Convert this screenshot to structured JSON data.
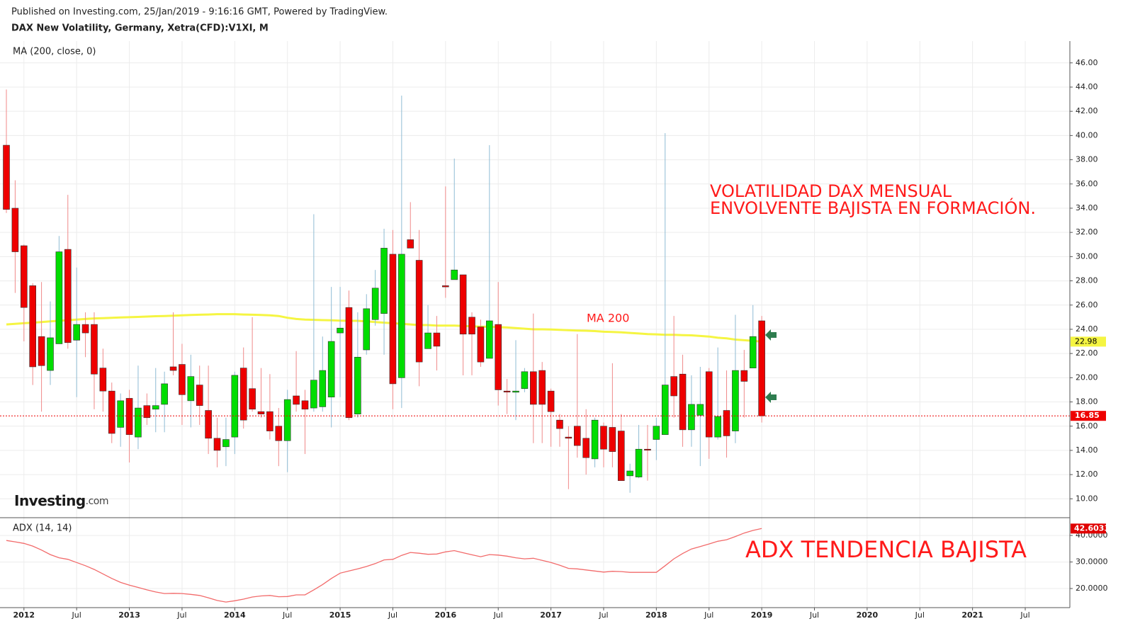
{
  "header": {
    "published": "Published on Investing.com, 25/Jan/2019 - 9:16:16 GMT, Powered by TradingView.",
    "logo": "Investing",
    "logo_suffix": ".com"
  },
  "chart_data": [
    {
      "type": "candlestick",
      "title": "DAX New Volatility, Germany, Xetra(CFD):V1XI, M",
      "indicator_label": "MA (200, close, 0)",
      "annotations": [
        "VOLATILIDAD DAX MENSUAL",
        "ENVOLVENTE BAJISTA EN FORMACIÓN.",
        "MA 200"
      ],
      "up_color": "#00dd00",
      "down_color": "#ee0000",
      "grid": true,
      "x": [
        "2011-11",
        "2011-12",
        "2012-01",
        "2012-02",
        "2012-03",
        "2012-04",
        "2012-05",
        "2012-06",
        "2012-07",
        "2012-08",
        "2012-09",
        "2012-10",
        "2012-11",
        "2012-12",
        "2013-01",
        "2013-02",
        "2013-03",
        "2013-04",
        "2013-05",
        "2013-06",
        "2013-07",
        "2013-08",
        "2013-09",
        "2013-10",
        "2013-11",
        "2013-12",
        "2014-01",
        "2014-02",
        "2014-03",
        "2014-04",
        "2014-05",
        "2014-06",
        "2014-07",
        "2014-08",
        "2014-09",
        "2014-10",
        "2014-11",
        "2014-12",
        "2015-01",
        "2015-02",
        "2015-03",
        "2015-04",
        "2015-05",
        "2015-06",
        "2015-07",
        "2015-08",
        "2015-09",
        "2015-10",
        "2015-11",
        "2015-12",
        "2016-01",
        "2016-02",
        "2016-03",
        "2016-04",
        "2016-05",
        "2016-06",
        "2016-07",
        "2016-08",
        "2016-09",
        "2016-10",
        "2016-11",
        "2016-12",
        "2017-01",
        "2017-02",
        "2017-03",
        "2017-04",
        "2017-05",
        "2017-06",
        "2017-07",
        "2017-08",
        "2017-09",
        "2017-10",
        "2017-11",
        "2017-12",
        "2018-01",
        "2018-02",
        "2018-03",
        "2018-04",
        "2018-05",
        "2018-06",
        "2018-07",
        "2018-08",
        "2018-09",
        "2018-10",
        "2018-11",
        "2018-12",
        "2019-01"
      ],
      "open": [
        39.2,
        34.0,
        30.9,
        27.6,
        23.4,
        20.6,
        22.8,
        30.6,
        23.1,
        24.4,
        24.4,
        20.8,
        18.9,
        15.9,
        18.3,
        15.1,
        17.7,
        17.4,
        17.8,
        20.9,
        21.1,
        18.1,
        19.4,
        17.3,
        15.0,
        14.3,
        15.1,
        20.8,
        19.1,
        17.2,
        17.2,
        16.0,
        14.8,
        18.5,
        18.1,
        17.5,
        17.6,
        18.4,
        23.7,
        25.8,
        17.0,
        22.3,
        24.8,
        25.3,
        30.2,
        20.0,
        31.4,
        29.7,
        22.4,
        23.7,
        27.6,
        28.1,
        28.5,
        25.0,
        24.2,
        21.6,
        24.4,
        18.9,
        18.8,
        19.1,
        20.5,
        20.6,
        18.9,
        16.5,
        15.1,
        16.0,
        15.0,
        13.3,
        16.0,
        15.9,
        15.6,
        11.9,
        11.8,
        14.1,
        14.9,
        15.3,
        20.1,
        20.3,
        15.7,
        16.9,
        20.5,
        15.1,
        17.3,
        15.6,
        20.6,
        20.8,
        24.7
      ],
      "high": [
        43.8,
        36.3,
        31.0,
        27.8,
        27.9,
        26.3,
        31.7,
        35.1,
        29.1,
        25.4,
        25.4,
        22.4,
        19.6,
        18.7,
        19.0,
        21.0,
        18.7,
        20.8,
        20.5,
        25.4,
        22.8,
        21.9,
        21.0,
        21.0,
        16.7,
        16.7,
        20.5,
        22.5,
        25.0,
        20.8,
        20.3,
        17.5,
        19.0,
        22.2,
        19.0,
        33.5,
        23.4,
        27.5,
        27.5,
        27.2,
        25.4,
        26.9,
        28.9,
        32.3,
        32.2,
        43.3,
        34.5,
        32.2,
        26.0,
        25.1,
        35.8,
        38.1,
        28.5,
        25.4,
        24.8,
        39.2,
        27.9,
        19.9,
        23.1,
        20.8,
        25.3,
        21.3,
        19.1,
        17.0,
        16.0,
        23.6,
        17.4,
        16.7,
        16.3,
        21.2,
        17.0,
        12.9,
        16.1,
        16.1,
        16.7,
        40.2,
        25.1,
        21.9,
        20.2,
        20.9,
        20.8,
        22.5,
        20.6,
        25.2,
        22.3,
        26.0,
        25.1
      ],
      "low": [
        33.6,
        27.0,
        23.0,
        19.4,
        17.2,
        19.4,
        22.8,
        22.4,
        18.4,
        21.7,
        17.4,
        17.2,
        14.6,
        14.3,
        13.0,
        14.1,
        16.1,
        15.5,
        15.5,
        20.2,
        16.1,
        15.9,
        16.1,
        13.7,
        12.6,
        12.7,
        13.7,
        15.8,
        17.2,
        16.7,
        14.9,
        12.7,
        12.2,
        17.2,
        13.7,
        17.2,
        17.2,
        15.9,
        18.4,
        16.5,
        16.7,
        21.9,
        24.3,
        21.9,
        17.4,
        17.5,
        30.7,
        19.3,
        22.4,
        20.6,
        26.6,
        28.1,
        20.2,
        20.2,
        20.9,
        21.6,
        17.7,
        17.0,
        16.5,
        18.8,
        14.6,
        14.6,
        14.3,
        14.3,
        10.8,
        13.4,
        12.0,
        12.6,
        12.6,
        12.6,
        11.5,
        10.5,
        11.7,
        11.5,
        13.2,
        15.3,
        16.7,
        14.3,
        14.3,
        12.7,
        13.3,
        14.9,
        13.4,
        14.6,
        16.7,
        20.8,
        16.3
      ],
      "close": [
        33.9,
        30.4,
        25.8,
        20.9,
        21.0,
        23.3,
        30.4,
        22.9,
        24.4,
        23.7,
        20.3,
        18.9,
        15.4,
        18.1,
        15.3,
        17.5,
        16.7,
        17.7,
        19.5,
        20.6,
        18.6,
        20.1,
        17.7,
        15.0,
        14.0,
        14.9,
        20.2,
        16.5,
        17.4,
        17.0,
        15.6,
        14.8,
        18.2,
        17.8,
        17.4,
        19.8,
        20.6,
        23.0,
        24.1,
        16.7,
        21.7,
        25.7,
        27.4,
        30.7,
        19.5,
        30.2,
        30.7,
        21.3,
        23.7,
        22.6,
        27.5,
        28.9,
        23.6,
        23.6,
        21.3,
        24.7,
        19.0,
        18.9,
        18.9,
        20.5,
        17.8,
        17.8,
        17.2,
        15.8,
        15.0,
        14.4,
        13.4,
        16.5,
        14.1,
        13.9,
        11.5,
        12.3,
        14.1,
        14.1,
        16.0,
        19.4,
        18.5,
        15.7,
        17.8,
        17.8,
        15.1,
        16.8,
        15.2,
        20.6,
        19.7,
        23.4,
        16.85
      ],
      "ma": {
        "color": "#f5f542",
        "values": [
          24.4,
          24.45,
          24.5,
          24.55,
          24.6,
          24.65,
          24.7,
          24.75,
          24.8,
          24.85,
          24.9,
          24.92,
          24.95,
          24.98,
          25.0,
          25.02,
          25.05,
          25.08,
          25.1,
          25.12,
          25.15,
          25.18,
          25.2,
          25.22,
          25.25,
          25.25,
          25.25,
          25.22,
          25.2,
          25.18,
          25.15,
          25.1,
          24.95,
          24.85,
          24.8,
          24.78,
          24.76,
          24.74,
          24.72,
          24.7,
          24.7,
          24.65,
          24.6,
          24.55,
          24.5,
          24.45,
          24.4,
          24.35,
          24.35,
          24.3,
          24.3,
          24.3,
          24.28,
          24.25,
          24.22,
          24.2,
          24.18,
          24.15,
          24.1,
          24.05,
          24.0,
          24.0,
          23.98,
          23.95,
          23.92,
          23.9,
          23.88,
          23.85,
          23.8,
          23.78,
          23.75,
          23.7,
          23.65,
          23.6,
          23.58,
          23.55,
          23.55,
          23.52,
          23.5,
          23.45,
          23.4,
          23.3,
          23.25,
          23.15,
          23.1,
          23.05,
          22.98
        ]
      },
      "xlim": [
        "2011-11",
        "2021-12"
      ],
      "xticks": [
        {
          "value": "2012-01",
          "label": "2012"
        },
        {
          "value": "2012-07",
          "label": "Jul"
        },
        {
          "value": "2013-01",
          "label": "2013"
        },
        {
          "value": "2013-07",
          "label": "Jul"
        },
        {
          "value": "2014-01",
          "label": "2014"
        },
        {
          "value": "2014-07",
          "label": "Jul"
        },
        {
          "value": "2015-01",
          "label": "2015"
        },
        {
          "value": "2015-07",
          "label": "Jul"
        },
        {
          "value": "2016-01",
          "label": "2016"
        },
        {
          "value": "2016-07",
          "label": "Jul"
        },
        {
          "value": "2017-01",
          "label": "2017"
        },
        {
          "value": "2017-07",
          "label": "Jul"
        },
        {
          "value": "2018-01",
          "label": "2018"
        },
        {
          "value": "2018-07",
          "label": "Jul"
        },
        {
          "value": "2019-01",
          "label": "2019"
        },
        {
          "value": "2019-07",
          "label": "Jul"
        },
        {
          "value": "2020-01",
          "label": "2020"
        },
        {
          "value": "2020-07",
          "label": "Jul"
        },
        {
          "value": "2021-01",
          "label": "2021"
        },
        {
          "value": "2021-07",
          "label": "Jul"
        }
      ],
      "ylim": [
        8.5,
        47.8
      ],
      "yticks": [
        {
          "value": 10,
          "label": "10.00"
        },
        {
          "value": 12,
          "label": "12.00"
        },
        {
          "value": 14,
          "label": "14.00"
        },
        {
          "value": 16,
          "label": "16.00"
        },
        {
          "value": 18,
          "label": "18.00"
        },
        {
          "value": 20,
          "label": "20.00"
        },
        {
          "value": 22,
          "label": "22.00"
        },
        {
          "value": 24,
          "label": "24.00"
        },
        {
          "value": 26,
          "label": "26.00"
        },
        {
          "value": 28,
          "label": "28.00"
        },
        {
          "value": 30,
          "label": "30.00"
        },
        {
          "value": 32,
          "label": "32.00"
        },
        {
          "value": 34,
          "label": "34.00"
        },
        {
          "value": 36,
          "label": "36.00"
        },
        {
          "value": 38,
          "label": "38.00"
        },
        {
          "value": 40,
          "label": "40.00"
        },
        {
          "value": 42,
          "label": "42.00"
        },
        {
          "value": 44,
          "label": "44.00"
        },
        {
          "value": 46,
          "label": "46.00"
        }
      ]
    },
    {
      "type": "line",
      "indicator_label": "ADX (14, 14)",
      "annotation": "ADX TENDENCIA BAJISTA",
      "color": "#f26b6b",
      "grid": true,
      "values": [
        38.1,
        37.6,
        37.0,
        36.0,
        34.5,
        32.8,
        31.6,
        31.0,
        29.8,
        28.6,
        27.2,
        25.5,
        23.8,
        22.3,
        21.3,
        20.4,
        19.5,
        18.7,
        18.1,
        18.2,
        18.1,
        17.8,
        17.4,
        16.5,
        15.5,
        14.9,
        15.4,
        16.0,
        16.8,
        17.2,
        17.4,
        16.9,
        17.0,
        17.6,
        17.6,
        19.5,
        21.5,
        23.8,
        25.8,
        26.6,
        27.4,
        28.3,
        29.4,
        30.8,
        31.0,
        32.5,
        33.6,
        33.3,
        32.9,
        33.0,
        33.8,
        34.3,
        33.5,
        32.7,
        32.0,
        32.8,
        32.6,
        32.2,
        31.6,
        31.2,
        31.4,
        30.6,
        29.8,
        28.8,
        27.6,
        27.4,
        27.0,
        26.6,
        26.2,
        26.5,
        26.4,
        26.1,
        26.1,
        26.1,
        26.1,
        28.6,
        31.2,
        33.2,
        34.9,
        35.8,
        36.8,
        37.8,
        38.4,
        39.6,
        40.9,
        41.9,
        42.6033
      ],
      "ylim": [
        12.8,
        46.7
      ],
      "yticks": [
        {
          "value": 20,
          "label": "20.0000"
        },
        {
          "value": 30,
          "label": "30.0000"
        },
        {
          "value": 40,
          "label": "40.0000"
        }
      ]
    }
  ]
}
